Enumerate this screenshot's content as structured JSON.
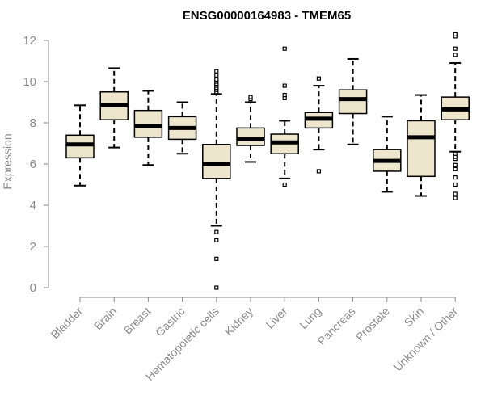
{
  "chart_data": {
    "type": "boxplot",
    "title": "ENSG00000164983 - TMEM65",
    "ylabel": "Expression",
    "xlabel": "",
    "ylim": [
      0,
      12
    ],
    "yticks": [
      0,
      2,
      4,
      6,
      8,
      10,
      12
    ],
    "grid": false,
    "box_fill": "#ede6cd",
    "categories": [
      "Bladder",
      "Brain",
      "Breast",
      "Gastric",
      "Hematopoietic cells",
      "Kidney",
      "Liver",
      "Lung",
      "Pancreas",
      "Prostate",
      "Skin",
      "Unknown / Other"
    ],
    "boxes": [
      {
        "category": "Bladder",
        "whisker_low": 4.95,
        "q1": 6.3,
        "median": 6.95,
        "q3": 7.4,
        "whisker_high": 8.85,
        "outliers": []
      },
      {
        "category": "Brain",
        "whisker_low": 6.8,
        "q1": 8.15,
        "median": 8.85,
        "q3": 9.5,
        "whisker_high": 10.65,
        "outliers": []
      },
      {
        "category": "Breast",
        "whisker_low": 5.95,
        "q1": 7.3,
        "median": 7.85,
        "q3": 8.6,
        "whisker_high": 9.55,
        "outliers": []
      },
      {
        "category": "Gastric",
        "whisker_low": 6.5,
        "q1": 7.2,
        "median": 7.75,
        "q3": 8.3,
        "whisker_high": 9.0,
        "outliers": []
      },
      {
        "category": "Hematopoietic cells",
        "whisker_low": 3.0,
        "q1": 5.3,
        "median": 6.0,
        "q3": 6.95,
        "whisker_high": 9.4,
        "outliers": [
          0.0,
          1.4,
          2.3,
          2.7,
          9.5,
          9.6,
          9.7,
          9.8,
          9.9,
          10.0,
          10.1,
          10.3,
          10.5
        ]
      },
      {
        "category": "Kidney",
        "whisker_low": 6.1,
        "q1": 6.9,
        "median": 7.2,
        "q3": 7.75,
        "whisker_high": 9.0,
        "outliers": [
          9.15,
          9.25
        ]
      },
      {
        "category": "Liver",
        "whisker_low": 5.3,
        "q1": 6.5,
        "median": 7.05,
        "q3": 7.45,
        "whisker_high": 8.1,
        "outliers": [
          5.0,
          9.2,
          9.35,
          9.8,
          11.6
        ]
      },
      {
        "category": "Lung",
        "whisker_low": 6.7,
        "q1": 7.75,
        "median": 8.2,
        "q3": 8.5,
        "whisker_high": 9.8,
        "outliers": [
          5.65,
          10.15
        ]
      },
      {
        "category": "Pancreas",
        "whisker_low": 6.95,
        "q1": 8.45,
        "median": 9.15,
        "q3": 9.6,
        "whisker_high": 11.1,
        "outliers": []
      },
      {
        "category": "Prostate",
        "whisker_low": 4.65,
        "q1": 5.65,
        "median": 6.15,
        "q3": 6.7,
        "whisker_high": 8.3,
        "outliers": []
      },
      {
        "category": "Skin",
        "whisker_low": 4.45,
        "q1": 5.4,
        "median": 7.3,
        "q3": 8.1,
        "whisker_high": 9.35,
        "outliers": []
      },
      {
        "category": "Unknown / Other",
        "whisker_low": 6.6,
        "q1": 8.15,
        "median": 8.65,
        "q3": 9.25,
        "whisker_high": 10.9,
        "outliers": [
          4.35,
          4.55,
          5.0,
          5.35,
          5.75,
          5.95,
          6.25,
          6.35,
          6.5,
          11.3,
          11.6,
          12.2,
          12.3
        ]
      }
    ]
  }
}
